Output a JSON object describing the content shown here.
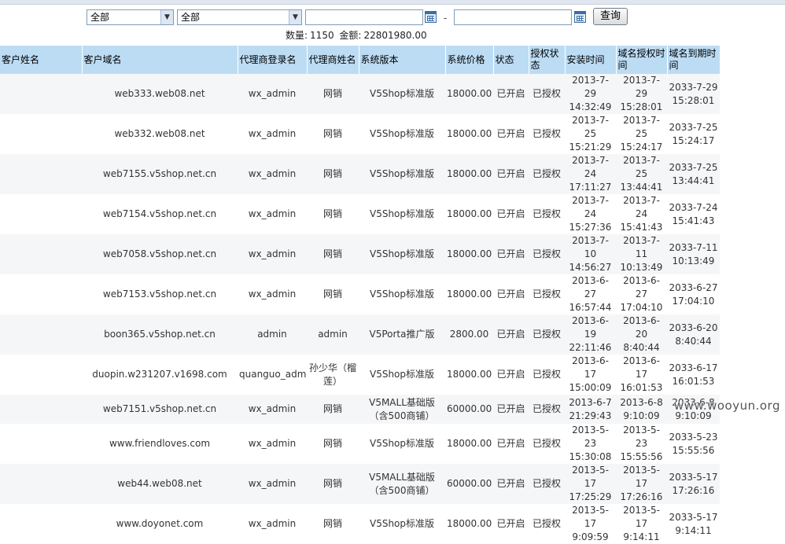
{
  "filters": {
    "select1": "全部",
    "select2": "全部",
    "date_separator": "-",
    "search_button": "查询"
  },
  "summary": {
    "count_label": "数量:",
    "count_value": "1150",
    "amount_label": "金额:",
    "amount_value": "22801980.00"
  },
  "columns": [
    "客户姓名",
    "客户域名",
    "代理商登录名",
    "代理商姓名",
    "系统版本",
    "系统价格",
    "状态",
    "授权状态",
    "安装时间",
    "域名授权时间",
    "域名到期时间"
  ],
  "rows": [
    {
      "name": "",
      "domain": "web333.web08.net",
      "agent_login": "wx_admin",
      "agent_name": "网销",
      "version": "V5Shop标准版",
      "price": "18000.00",
      "status": "已开启",
      "auth": "已授权",
      "install": [
        "2013-7-29",
        "14:32:49"
      ],
      "auth_time": [
        "2013-7-29",
        "15:28:01"
      ],
      "expire": [
        "2033-7-29",
        "15:28:01"
      ]
    },
    {
      "name": "",
      "domain": "web332.web08.net",
      "agent_login": "wx_admin",
      "agent_name": "网销",
      "version": "V5Shop标准版",
      "price": "18000.00",
      "status": "已开启",
      "auth": "已授权",
      "install": [
        "2013-7-25",
        "15:21:29"
      ],
      "auth_time": [
        "2013-7-25",
        "15:24:17"
      ],
      "expire": [
        "2033-7-25",
        "15:24:17"
      ]
    },
    {
      "name": "",
      "domain": "web7155.v5shop.net.cn",
      "agent_login": "wx_admin",
      "agent_name": "网销",
      "version": "V5Shop标准版",
      "price": "18000.00",
      "status": "已开启",
      "auth": "已授权",
      "install": [
        "2013-7-24",
        "17:11:27"
      ],
      "auth_time": [
        "2013-7-25",
        "13:44:41"
      ],
      "expire": [
        "2033-7-25",
        "13:44:41"
      ]
    },
    {
      "name": "",
      "domain": "web7154.v5shop.net.cn",
      "agent_login": "wx_admin",
      "agent_name": "网销",
      "version": "V5Shop标准版",
      "price": "18000.00",
      "status": "已开启",
      "auth": "已授权",
      "install": [
        "2013-7-24",
        "15:27:36"
      ],
      "auth_time": [
        "2013-7-24",
        "15:41:43"
      ],
      "expire": [
        "2033-7-24",
        "15:41:43"
      ]
    },
    {
      "name": "",
      "domain": "web7058.v5shop.net.cn",
      "agent_login": "wx_admin",
      "agent_name": "网销",
      "version": "V5Shop标准版",
      "price": "18000.00",
      "status": "已开启",
      "auth": "已授权",
      "install": [
        "2013-7-10",
        "14:56:27"
      ],
      "auth_time": [
        "2013-7-11",
        "10:13:49"
      ],
      "expire": [
        "2033-7-11",
        "10:13:49"
      ]
    },
    {
      "name": "",
      "domain": "web7153.v5shop.net.cn",
      "agent_login": "wx_admin",
      "agent_name": "网销",
      "version": "V5Shop标准版",
      "price": "18000.00",
      "status": "已开启",
      "auth": "已授权",
      "install": [
        "2013-6-27",
        "16:57:44"
      ],
      "auth_time": [
        "2013-6-27",
        "17:04:10"
      ],
      "expire": [
        "2033-6-27",
        "17:04:10"
      ]
    },
    {
      "name": "",
      "domain": "boon365.v5shop.net.cn",
      "agent_login": "admin",
      "agent_name": "admin",
      "version": "V5Porta推广版",
      "price": "2800.00",
      "status": "已开启",
      "auth": "已授权",
      "install": [
        "2013-6-19",
        "22:11:46"
      ],
      "auth_time": [
        "2013-6-20",
        "8:40:44"
      ],
      "expire": [
        "2033-6-20",
        "8:40:44"
      ]
    },
    {
      "name": "",
      "domain": "duopin.w231207.v1698.com",
      "agent_login": "quanguo_admin",
      "agent_name": "孙少华（榴莲）",
      "version": "V5Shop标准版",
      "price": "18000.00",
      "status": "已开启",
      "auth": "已授权",
      "install": [
        "2013-6-17",
        "15:00:09"
      ],
      "auth_time": [
        "2013-6-17",
        "16:01:53"
      ],
      "expire": [
        "2033-6-17",
        "16:01:53"
      ]
    },
    {
      "name": "",
      "domain": "web7151.v5shop.net.cn",
      "agent_login": "wx_admin",
      "agent_name": "网销",
      "version": "V5MALL基础版（含500商铺）",
      "price": "60000.00",
      "status": "已开启",
      "auth": "已授权",
      "install": [
        "2013-6-7",
        "21:29:43"
      ],
      "auth_time": [
        "2013-6-8",
        "9:10:09"
      ],
      "expire": [
        "2033-6-8",
        "9:10:09"
      ]
    },
    {
      "name": "",
      "domain": "www.friendloves.com",
      "agent_login": "wx_admin",
      "agent_name": "网销",
      "version": "V5Shop标准版",
      "price": "18000.00",
      "status": "已开启",
      "auth": "已授权",
      "install": [
        "2013-5-23",
        "15:30:08"
      ],
      "auth_time": [
        "2013-5-23",
        "15:55:56"
      ],
      "expire": [
        "2033-5-23",
        "15:55:56"
      ]
    },
    {
      "name": "",
      "domain": "web44.web08.net",
      "agent_login": "wx_admin",
      "agent_name": "网销",
      "version": "V5MALL基础版（含500商铺）",
      "price": "60000.00",
      "status": "已开启",
      "auth": "已授权",
      "install": [
        "2013-5-17",
        "17:25:29"
      ],
      "auth_time": [
        "2013-5-17",
        "17:26:16"
      ],
      "expire": [
        "2033-5-17",
        "17:26:16"
      ]
    },
    {
      "name": "",
      "domain": "www.doyonet.com",
      "agent_login": "wx_admin",
      "agent_name": "网销",
      "version": "V5Shop标准版",
      "price": "18000.00",
      "status": "已开启",
      "auth": "已授权",
      "install": [
        "2013-5-17",
        "9:09:59"
      ],
      "auth_time": [
        "2013-5-17",
        "9:14:11"
      ],
      "expire": [
        "2033-5-17",
        "9:14:11"
      ]
    }
  ],
  "watermark": "www.wooyun.org"
}
